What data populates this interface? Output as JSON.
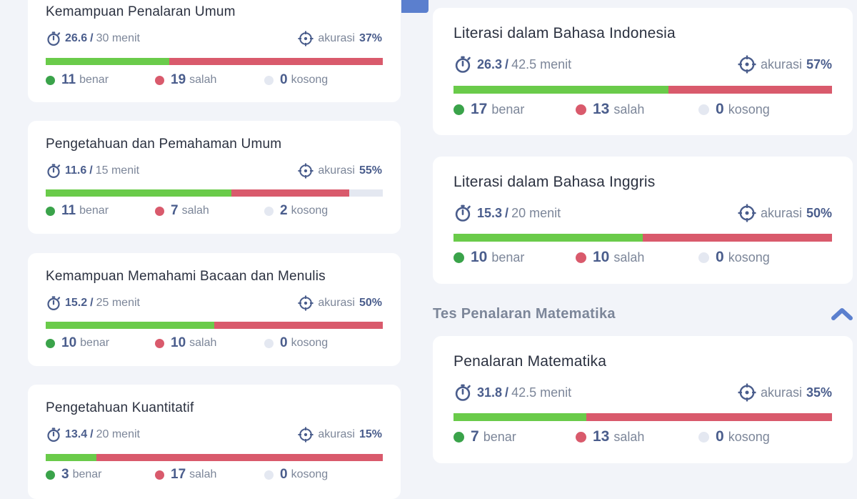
{
  "left_cards": [
    {
      "title": "Kemampuan Penalaran Umum",
      "time": "26.6",
      "limit": "30 menit",
      "accuracy_label": "akurasi",
      "accuracy": "37%",
      "correct": "11",
      "wrong": "19",
      "empty": "0",
      "correct_label": "benar",
      "wrong_label": "salah",
      "empty_label": "kosong",
      "correct_frac": 0.367,
      "wrong_frac": 0.633
    },
    {
      "title": "Pengetahuan dan Pemahaman Umum",
      "time": "11.6",
      "limit": "15 menit",
      "accuracy_label": "akurasi",
      "accuracy": "55%",
      "correct": "11",
      "wrong": "7",
      "empty": "2",
      "correct_label": "benar",
      "wrong_label": "salah",
      "empty_label": "kosong",
      "correct_frac": 0.55,
      "wrong_frac": 0.35
    },
    {
      "title": "Kemampuan Memahami Bacaan dan Menulis",
      "time": "15.2",
      "limit": "25 menit",
      "accuracy_label": "akurasi",
      "accuracy": "50%",
      "correct": "10",
      "wrong": "10",
      "empty": "0",
      "correct_label": "benar",
      "wrong_label": "salah",
      "empty_label": "kosong",
      "correct_frac": 0.5,
      "wrong_frac": 0.5
    },
    {
      "title": "Pengetahuan Kuantitatif",
      "time": "13.4",
      "limit": "20 menit",
      "accuracy_label": "akurasi",
      "accuracy": "15%",
      "correct": "3",
      "wrong": "17",
      "empty": "0",
      "correct_label": "benar",
      "wrong_label": "salah",
      "empty_label": "kosong",
      "correct_frac": 0.15,
      "wrong_frac": 0.85
    }
  ],
  "right_cards": [
    {
      "title": "Literasi dalam Bahasa Indonesia",
      "time": "26.3",
      "limit": "42.5 menit",
      "accuracy_label": "akurasi",
      "accuracy": "57%",
      "correct": "17",
      "wrong": "13",
      "empty": "0",
      "correct_label": "benar",
      "wrong_label": "salah",
      "empty_label": "kosong",
      "correct_frac": 0.567,
      "wrong_frac": 0.433
    },
    {
      "title": "Literasi dalam Bahasa Inggris",
      "time": "15.3",
      "limit": "20 menit",
      "accuracy_label": "akurasi",
      "accuracy": "50%",
      "correct": "10",
      "wrong": "10",
      "empty": "0",
      "correct_label": "benar",
      "wrong_label": "salah",
      "empty_label": "kosong",
      "correct_frac": 0.5,
      "wrong_frac": 0.5
    },
    {
      "title": "Penalaran Matematika",
      "time": "31.8",
      "limit": "42.5 menit",
      "accuracy_label": "akurasi",
      "accuracy": "35%",
      "correct": "7",
      "wrong": "13",
      "empty": "0",
      "correct_label": "benar",
      "wrong_label": "salah",
      "empty_label": "kosong",
      "correct_frac": 0.35,
      "wrong_frac": 0.65
    }
  ],
  "section": {
    "title": "Tes Penalaran Matematika"
  },
  "icons": {
    "timer": "stopwatch-icon",
    "accuracy": "crosshair-target-icon",
    "collapse": "chevron-up-icon"
  },
  "colors": {
    "correct": "#6acb4a",
    "wrong": "#d95a6c",
    "empty": "#e4e8f1",
    "accent": "#4a5d8c",
    "top_bar": "#5b7fce"
  }
}
